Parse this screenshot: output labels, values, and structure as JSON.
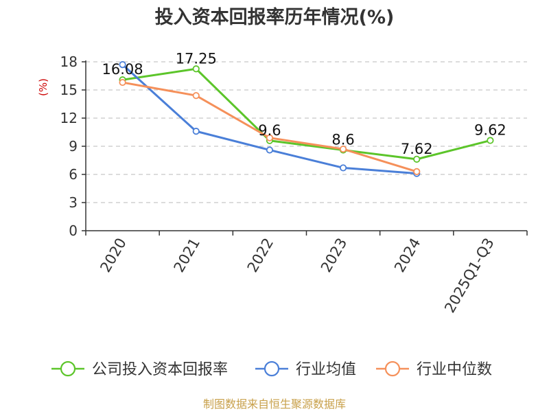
{
  "chart_data": {
    "type": "line",
    "title": "投入资本回报率历年情况(%)",
    "ylabel": "(%)",
    "xlabel": "",
    "categories": [
      "2020",
      "2021",
      "2022",
      "2023",
      "2024",
      "2025Q1-Q3"
    ],
    "ylim": [
      0,
      18
    ],
    "yticks": [
      0,
      3,
      6,
      9,
      12,
      15,
      18
    ],
    "grid": true,
    "legend_position": "bottom",
    "series": [
      {
        "name": "公司投入资本回报率",
        "color": "#5cc52a",
        "values": [
          16.08,
          17.25,
          9.6,
          8.6,
          7.62,
          9.62
        ],
        "labels": [
          "16.08",
          "17.25",
          "9.6",
          "8.6",
          "7.62",
          "9.62"
        ]
      },
      {
        "name": "行业均值",
        "color": "#4a7fd8",
        "values": [
          17.7,
          10.6,
          8.6,
          6.7,
          6.1,
          null
        ],
        "labels": []
      },
      {
        "name": "行业中位数",
        "color": "#f5905a",
        "values": [
          15.8,
          14.4,
          9.9,
          8.7,
          6.3,
          null
        ],
        "labels": []
      }
    ]
  },
  "source": "制图数据来自恒生聚源数据库"
}
